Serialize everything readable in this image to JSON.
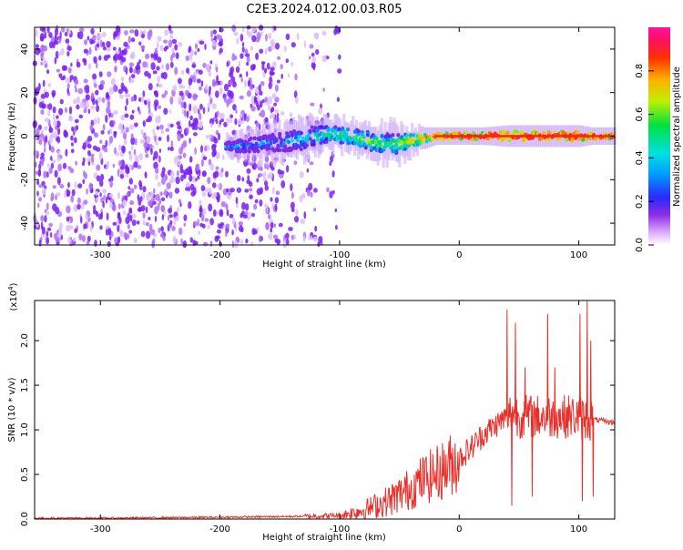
{
  "title": "C2E3.2024.012.00.03.R05",
  "colors": {
    "snr_line": "#e8302a",
    "spectrogram_dots": "#7a1ff2",
    "ridge_core": "#ff2010"
  },
  "chart_data": [
    {
      "type": "heatmap",
      "xlabel": "Height of straight line (km)",
      "ylabel": "Frequency (Hz)",
      "xlim": [
        -355,
        130
      ],
      "ylim": [
        -50,
        50
      ],
      "xticks": [
        -300,
        -200,
        -100,
        0,
        100
      ],
      "yticks": [
        -40,
        -20,
        0,
        20,
        40
      ],
      "colorbar": {
        "label": "Normalized spectral amplitude",
        "ticks": [
          "0.0",
          "0.2",
          "0.4",
          "0.6",
          "0.8"
        ],
        "range": [
          0,
          1
        ]
      },
      "noise_region_km": [
        -355,
        -100
      ],
      "ridge": {
        "x": [
          -195,
          -150,
          -130,
          -110,
          -90,
          -70,
          -55,
          -40,
          -20,
          0,
          20,
          40,
          60,
          80,
          100,
          110,
          130
        ],
        "freq": [
          -5,
          -3,
          -1,
          1,
          0,
          -3,
          -4,
          -2,
          0,
          0,
          0,
          0,
          0,
          0,
          0,
          0,
          0
        ],
        "spread": [
          3,
          6,
          7,
          5,
          5,
          6,
          7,
          4,
          2,
          2,
          2,
          3,
          3,
          3,
          3,
          2,
          2
        ],
        "amplitude": [
          0.3,
          0.35,
          0.4,
          0.5,
          0.55,
          0.6,
          0.55,
          0.7,
          0.85,
          0.95,
          0.95,
          0.95,
          0.95,
          0.95,
          0.95,
          0.9,
          0.9
        ]
      }
    },
    {
      "type": "line",
      "xlabel": "Height of straight line (km)",
      "ylabel": "SNR (10 * v/v)",
      "yscale_label": "(x10",
      "yscale_exp": "4",
      "xlim": [
        -355,
        130
      ],
      "ylim": [
        0,
        2.45
      ],
      "xticks": [
        -300,
        -200,
        -100,
        0,
        100
      ],
      "yticks": [
        "0.0",
        "0.5",
        "1.0",
        "1.5",
        "2.0"
      ],
      "series": [
        {
          "x": [
            -355,
            -300,
            -200,
            -130,
            -100,
            -80,
            -60,
            -40,
            -30,
            -20,
            -10,
            0,
            10,
            20,
            30,
            40,
            45,
            50,
            60,
            70,
            80,
            90,
            100,
            105,
            110,
            120,
            130
          ],
          "values": [
            0.01,
            0.01,
            0.02,
            0.03,
            0.04,
            0.1,
            0.2,
            0.35,
            0.45,
            0.5,
            0.58,
            0.68,
            0.8,
            0.95,
            1.05,
            1.15,
            1.2,
            1.15,
            1.15,
            1.15,
            1.15,
            1.15,
            1.15,
            1.12,
            1.12,
            1.1,
            1.08
          ]
        }
      ],
      "spikes": [
        {
          "x": 40,
          "value": 2.35
        },
        {
          "x": 44,
          "value": 0.15
        },
        {
          "x": 47,
          "value": 2.2
        },
        {
          "x": 55,
          "value": 1.7
        },
        {
          "x": 61,
          "value": 0.25
        },
        {
          "x": 74,
          "value": 2.3
        },
        {
          "x": 80,
          "value": 1.7
        },
        {
          "x": 101,
          "value": 2.3
        },
        {
          "x": 103,
          "value": 0.2
        },
        {
          "x": 107,
          "value": 2.45
        },
        {
          "x": 110,
          "value": 2.0
        },
        {
          "x": 112,
          "value": 0.25
        }
      ]
    }
  ]
}
